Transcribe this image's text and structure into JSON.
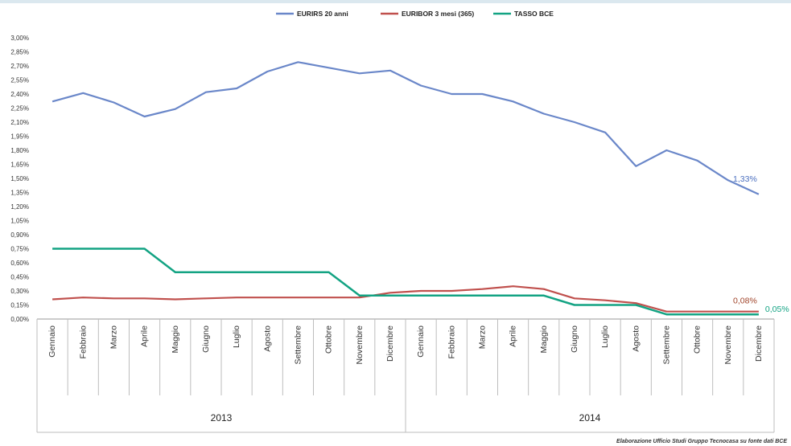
{
  "chart_data": {
    "type": "line",
    "categories": [
      "Gennaio",
      "Febbraio",
      "Marzo",
      "Aprile",
      "Maggio",
      "Giugno",
      "Luglio",
      "Agosto",
      "Settembre",
      "Ottobre",
      "Novembre",
      "Dicembre",
      "Gennaio",
      "Febbraio",
      "Marzo",
      "Aprile",
      "Maggio",
      "Giugno",
      "Luglio",
      "Agosto",
      "Settembre",
      "Ottobre",
      "Novembre",
      "Dicembre"
    ],
    "years": [
      "2013",
      "2014"
    ],
    "series": [
      {
        "name": "EURIRS 20 anni",
        "color": "#6a87c9",
        "values": [
          2.32,
          2.41,
          2.31,
          2.16,
          2.24,
          2.42,
          2.46,
          2.64,
          2.74,
          2.68,
          2.62,
          2.65,
          2.49,
          2.4,
          2.4,
          2.32,
          2.19,
          2.1,
          1.99,
          1.63,
          1.8,
          1.69,
          1.48,
          1.33
        ],
        "end_label": "1,33%",
        "end_label_color": "#4a6fbf"
      },
      {
        "name": "EURIBOR 3 mesi (365)",
        "color": "#c0504d",
        "values": [
          0.21,
          0.23,
          0.22,
          0.22,
          0.21,
          0.22,
          0.23,
          0.23,
          0.23,
          0.23,
          0.23,
          0.28,
          0.3,
          0.3,
          0.32,
          0.35,
          0.32,
          0.22,
          0.2,
          0.17,
          0.08,
          0.08,
          0.08,
          0.08
        ],
        "end_label": "0,08%",
        "end_label_color": "#a0442a"
      },
      {
        "name": "TASSO BCE",
        "color": "#13a383",
        "values": [
          0.75,
          0.75,
          0.75,
          0.75,
          0.5,
          0.5,
          0.5,
          0.5,
          0.5,
          0.5,
          0.25,
          0.25,
          0.25,
          0.25,
          0.25,
          0.25,
          0.25,
          0.15,
          0.15,
          0.15,
          0.05,
          0.05,
          0.05,
          0.05
        ],
        "end_label": "0,05%",
        "end_label_color": "#13a383"
      }
    ],
    "ylim": [
      0,
      3
    ],
    "y_ticks": [
      "0,00%",
      "0,15%",
      "0,30%",
      "0,45%",
      "0,60%",
      "0,75%",
      "0,90%",
      "1,05%",
      "1,20%",
      "1,35%",
      "1,50%",
      "1,65%",
      "1,80%",
      "1,95%",
      "2,10%",
      "2,25%",
      "2,40%",
      "2,55%",
      "2,70%",
      "2,85%",
      "3,00%"
    ],
    "legend_position": "top-center",
    "grid": false,
    "source_note": "Elaborazione Ufficio Studi Gruppo Tecnocasa su fonte dati BCE"
  }
}
